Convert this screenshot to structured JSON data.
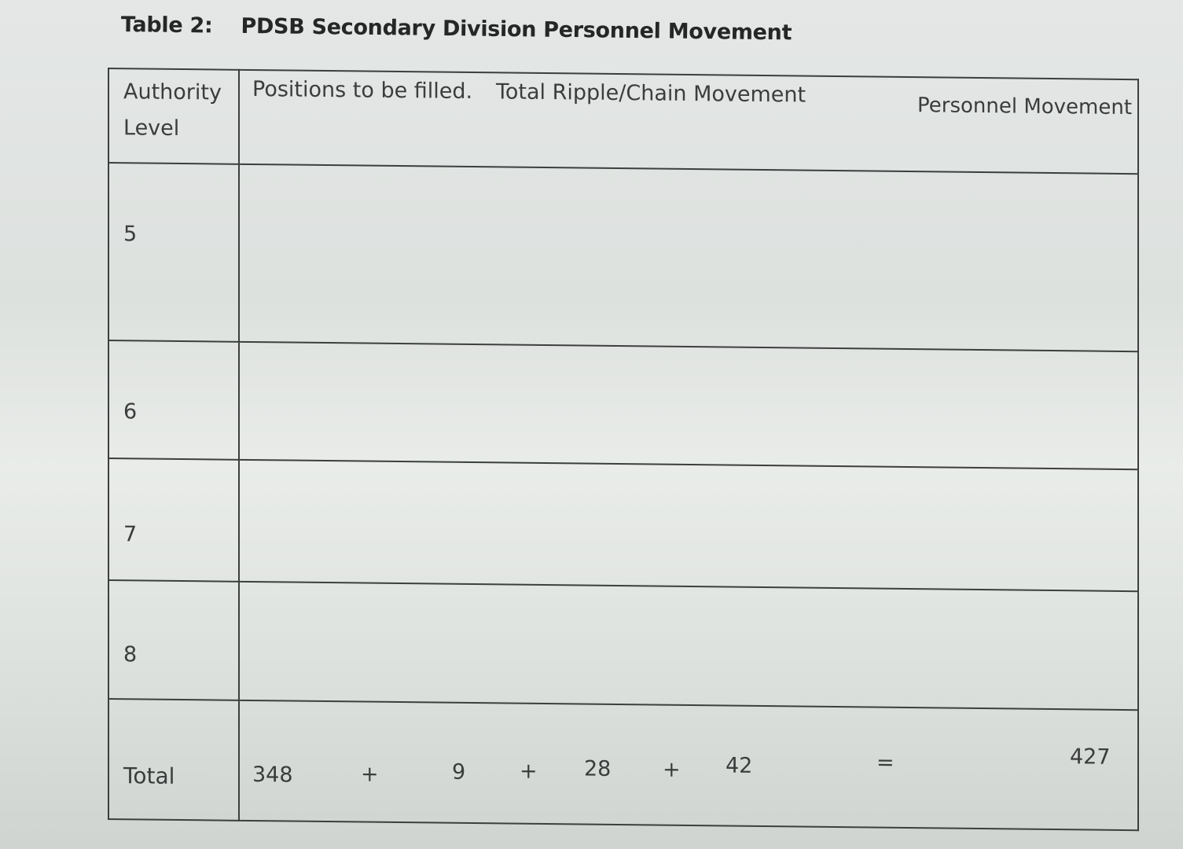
{
  "caption": {
    "label": "Table 2:",
    "title": "PDSB Secondary Division Personnel Movement"
  },
  "table": {
    "header": {
      "authority_level": "Authority Level",
      "positions": "Positions to be filled.",
      "ripple": "Total Ripple/Chain Movement",
      "personnel": "Personnel Movement"
    },
    "rows": [
      {
        "level": "5"
      },
      {
        "level": "6"
      },
      {
        "level": "7"
      },
      {
        "level": "8"
      }
    ],
    "total": {
      "label": "Total",
      "a": "348",
      "plus1": "+",
      "b": "9",
      "plus2": "+",
      "c": "28",
      "plus3": "+",
      "d": "42",
      "equals": "=",
      "result": "427"
    }
  }
}
